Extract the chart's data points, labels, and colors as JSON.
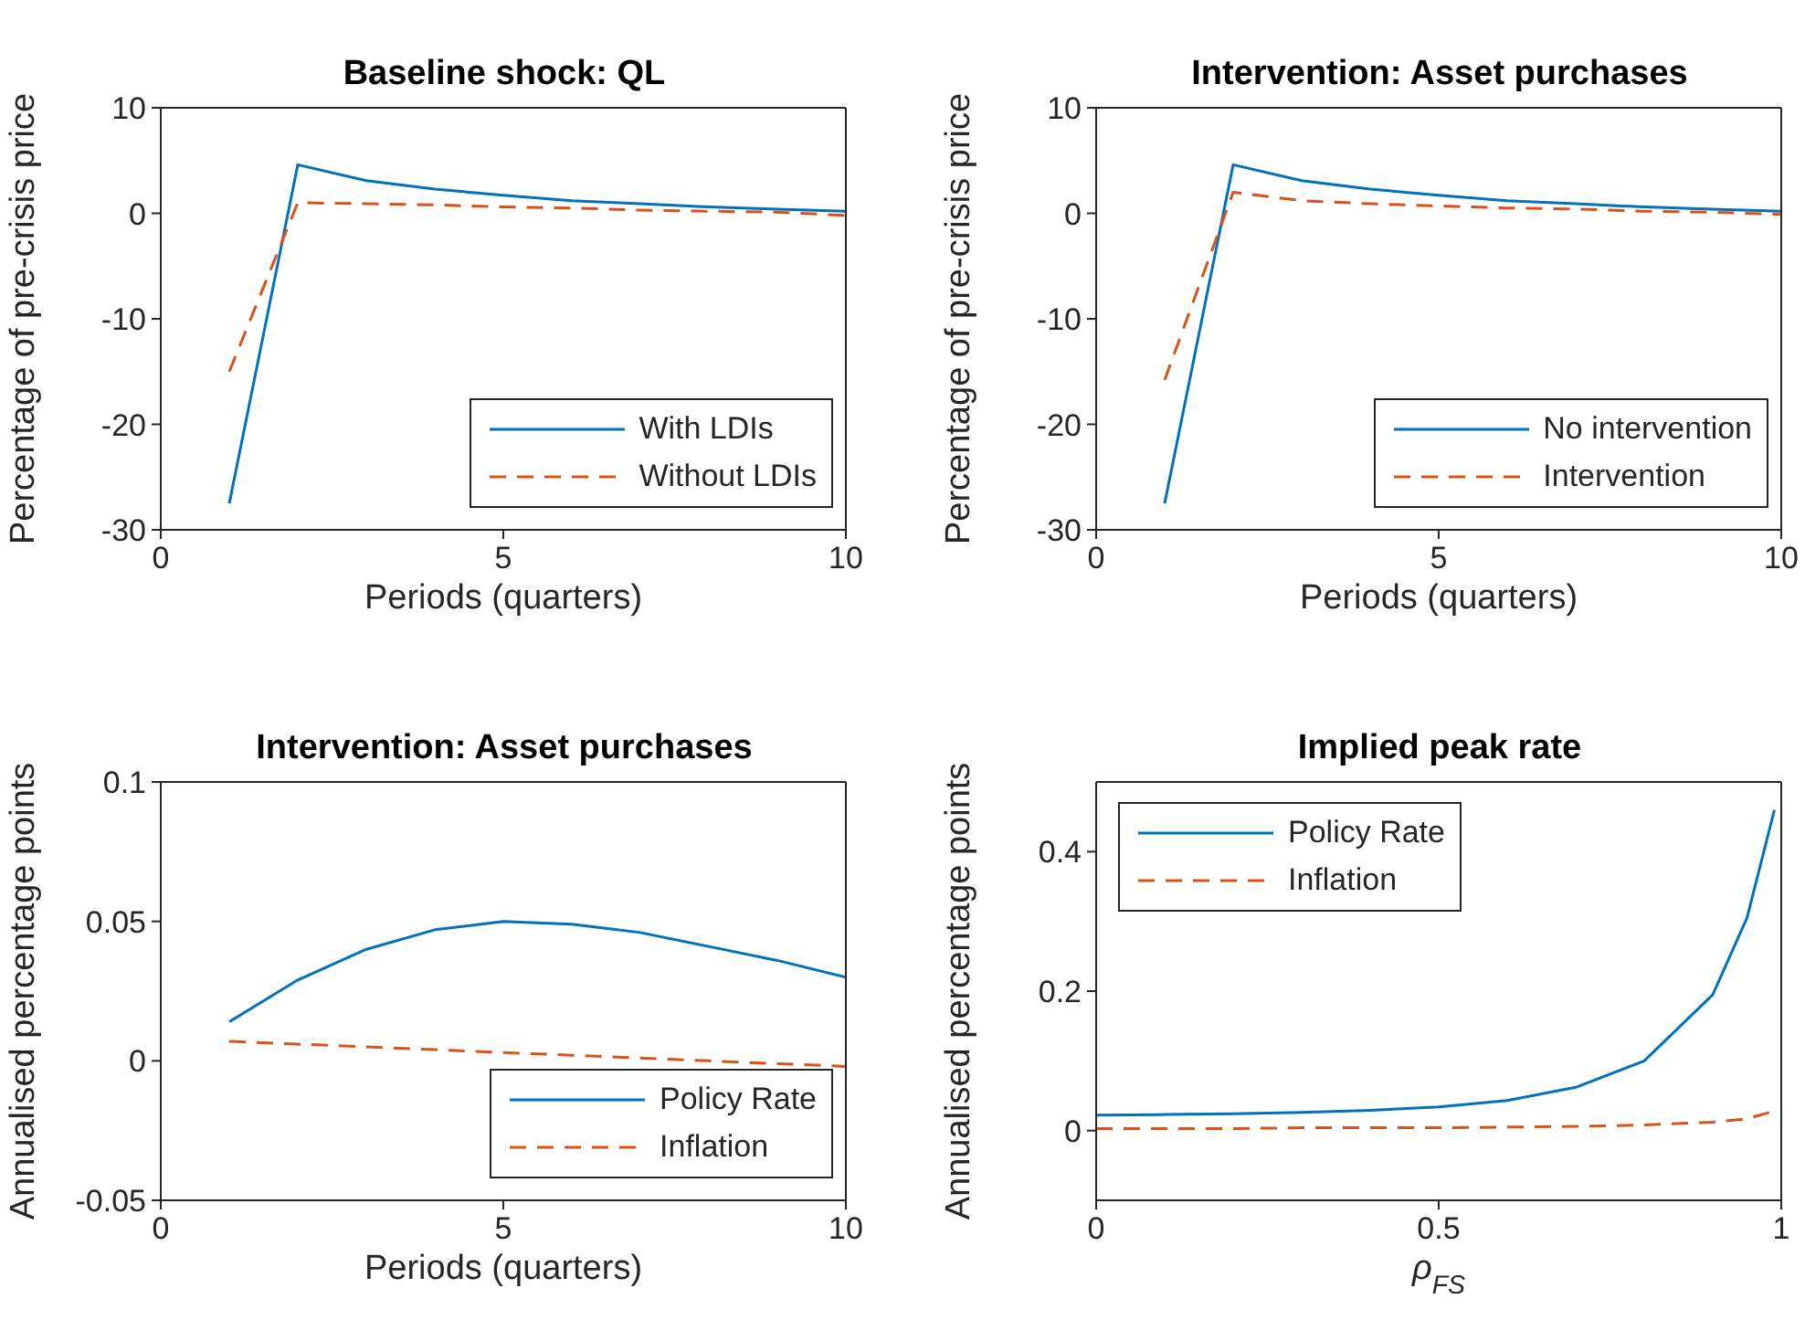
{
  "chart_data": [
    {
      "type": "line",
      "title": "Baseline shock: QL",
      "xlabel": "Periods (quarters)",
      "ylabel": "Percentage of pre-crisis price",
      "x": [
        1,
        2,
        3,
        4,
        5,
        6,
        7,
        8,
        9,
        10
      ],
      "xlim": [
        0,
        10
      ],
      "xticks": [
        0,
        5,
        10
      ],
      "ylim": [
        -30,
        10
      ],
      "yticks": [
        -30,
        -20,
        -10,
        0,
        10
      ],
      "legend": "bottom right",
      "grid": false,
      "marker": "none",
      "series": [
        {
          "name": "With LDIs",
          "color": "#0072bd",
          "line_style": "solid",
          "values": [
            -27.5,
            4.6,
            3.1,
            2.3,
            1.7,
            1.2,
            0.9,
            0.6,
            0.4,
            0.2
          ]
        },
        {
          "name": "Without LDIs",
          "color": "#d95319",
          "line_style": "dashed",
          "values": [
            -15,
            1.0,
            0.9,
            0.8,
            0.6,
            0.5,
            0.3,
            0.2,
            0.1,
            -0.2
          ]
        }
      ]
    },
    {
      "type": "line",
      "title": "Intervention: Asset purchases",
      "xlabel": "Periods (quarters)",
      "ylabel": "Percentage of pre-crisis price",
      "x": [
        1,
        2,
        3,
        4,
        5,
        6,
        7,
        8,
        9,
        10
      ],
      "xlim": [
        0,
        10
      ],
      "xticks": [
        0,
        5,
        10
      ],
      "ylim": [
        -30,
        10
      ],
      "yticks": [
        -30,
        -20,
        -10,
        0,
        10
      ],
      "legend": "bottom right",
      "grid": false,
      "marker": "none",
      "series": [
        {
          "name": "No intervention",
          "color": "#0072bd",
          "line_style": "solid",
          "values": [
            -27.5,
            4.6,
            3.1,
            2.3,
            1.7,
            1.2,
            0.9,
            0.6,
            0.4,
            0.2
          ]
        },
        {
          "name": "Intervention",
          "color": "#d95319",
          "line_style": "dashed",
          "values": [
            -15.8,
            2.0,
            1.2,
            0.9,
            0.7,
            0.5,
            0.4,
            0.2,
            0.1,
            -0.1
          ]
        }
      ]
    },
    {
      "type": "line",
      "title": "Intervention: Asset purchases",
      "xlabel": "Periods (quarters)",
      "ylabel": "Annualised percentage points",
      "x": [
        1,
        2,
        3,
        4,
        5,
        6,
        7,
        8,
        9,
        10
      ],
      "xlim": [
        0,
        10
      ],
      "xticks": [
        0,
        5,
        10
      ],
      "ylim": [
        -0.05,
        0.1
      ],
      "yticks": [
        -0.05,
        0,
        0.05,
        0.1
      ],
      "legend": "bottom right",
      "grid": false,
      "marker": "none",
      "series": [
        {
          "name": "Policy Rate",
          "color": "#0072bd",
          "line_style": "solid",
          "values": [
            0.014,
            0.029,
            0.04,
            0.047,
            0.05,
            0.049,
            0.046,
            0.041,
            0.036,
            0.03
          ]
        },
        {
          "name": "Inflation",
          "color": "#d95319",
          "line_style": "dashed",
          "values": [
            0.007,
            0.006,
            0.005,
            0.004,
            0.003,
            0.002,
            0.001,
            0.0,
            -0.001,
            -0.002
          ]
        }
      ]
    },
    {
      "type": "line",
      "title": "Implied peak rate",
      "xlabel": "ρ$_{FS}$",
      "ylabel": "Annualised percentage points",
      "x": [
        0,
        0.1,
        0.2,
        0.3,
        0.4,
        0.5,
        0.6,
        0.7,
        0.8,
        0.9,
        0.95,
        0.99
      ],
      "xlim": [
        0,
        1
      ],
      "xticks": [
        0,
        0.5,
        1
      ],
      "ylim": [
        -0.1,
        0.5
      ],
      "yticks": [
        0,
        0.2,
        0.4
      ],
      "legend": "top left",
      "grid": false,
      "marker": "none",
      "series": [
        {
          "name": "Policy Rate",
          "color": "#0072bd",
          "line_style": "solid",
          "values": [
            0.022,
            0.023,
            0.024,
            0.026,
            0.029,
            0.034,
            0.043,
            0.062,
            0.1,
            0.195,
            0.305,
            0.46
          ]
        },
        {
          "name": "Inflation",
          "color": "#d95319",
          "line_style": "dashed",
          "values": [
            0.003,
            0.003,
            0.003,
            0.004,
            0.004,
            0.004,
            0.005,
            0.006,
            0.008,
            0.012,
            0.017,
            0.028
          ]
        }
      ]
    }
  ]
}
